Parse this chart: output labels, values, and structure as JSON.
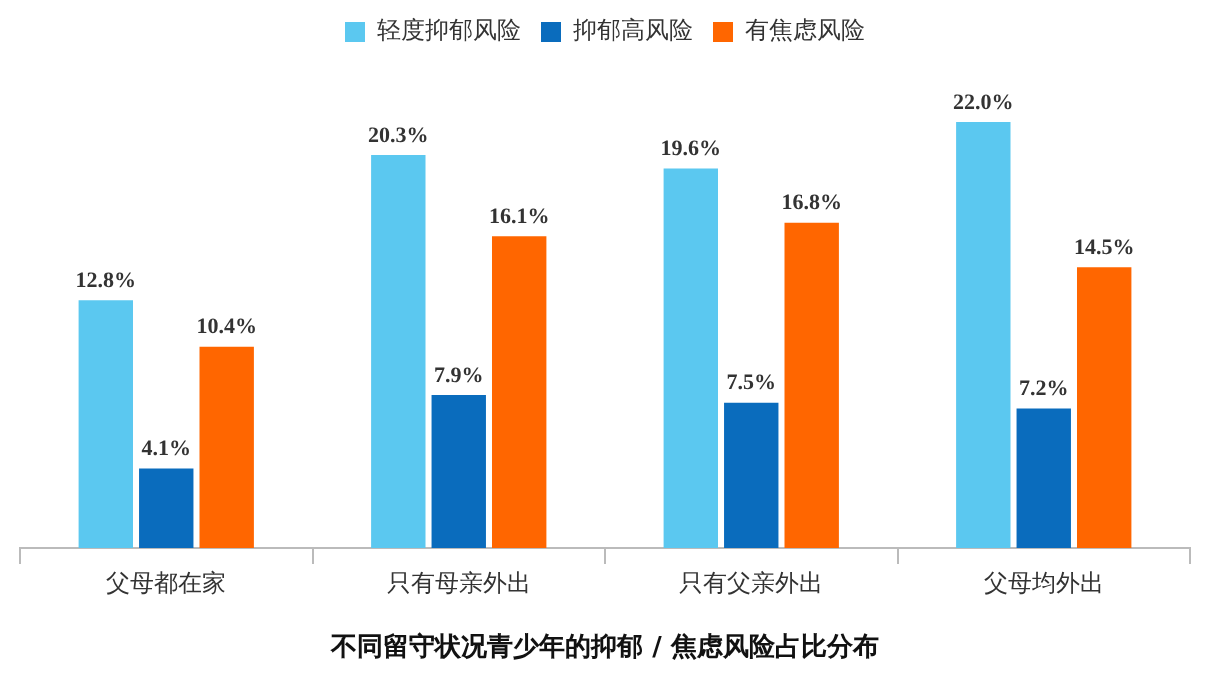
{
  "chart_data": {
    "type": "bar",
    "title": "不同留守状况青少年的抑郁 / 焦虑风险占比分布",
    "categories": [
      "父母都在家",
      "只有母亲外出",
      "只有父亲外出",
      "父母均外出"
    ],
    "series": [
      {
        "name": "轻度抑郁风险",
        "color": "#5bc8f0",
        "values": [
          12.8,
          20.3,
          19.6,
          22.0
        ],
        "value_labels": [
          "12.8%",
          "20.3%",
          "19.6%",
          "22.0%"
        ]
      },
      {
        "name": "抑郁高风险",
        "color": "#0a6cbd",
        "values": [
          4.1,
          7.9,
          7.5,
          7.2
        ],
        "value_labels": [
          "4.1%",
          "7.9%",
          "7.5%",
          "7.2%"
        ]
      },
      {
        "name": "有焦虑风险",
        "color": "#ff6600",
        "values": [
          10.4,
          16.1,
          16.8,
          14.5
        ],
        "value_labels": [
          "10.4%",
          "16.1%",
          "16.8%",
          "14.5%"
        ]
      }
    ],
    "legend": "top",
    "tick_labels": "x"
  }
}
